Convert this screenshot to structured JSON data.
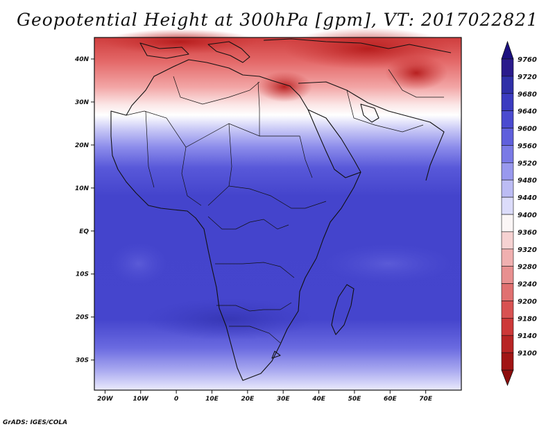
{
  "title": "Geopotential Height at 300hPa [gpm], VT: 2017022821",
  "credit": "GrADS: IGES/COLA",
  "map": {
    "lon_range": [
      -23,
      80
    ],
    "lat_range": [
      -37,
      45
    ],
    "lat_ticks": [
      {
        "value": 40,
        "label": "40N"
      },
      {
        "value": 30,
        "label": "30N"
      },
      {
        "value": 20,
        "label": "20N"
      },
      {
        "value": 10,
        "label": "10N"
      },
      {
        "value": 0,
        "label": "EQ"
      },
      {
        "value": -10,
        "label": "10S"
      },
      {
        "value": -20,
        "label": "20S"
      },
      {
        "value": -30,
        "label": "30S"
      }
    ],
    "lon_ticks": [
      {
        "value": -20,
        "label": "20W"
      },
      {
        "value": -10,
        "label": "10W"
      },
      {
        "value": 0,
        "label": "0"
      },
      {
        "value": 10,
        "label": "10E"
      },
      {
        "value": 20,
        "label": "20E"
      },
      {
        "value": 30,
        "label": "30E"
      },
      {
        "value": 40,
        "label": "40E"
      },
      {
        "value": 50,
        "label": "50E"
      },
      {
        "value": 60,
        "label": "60E"
      },
      {
        "value": 70,
        "label": "70E"
      }
    ]
  },
  "colorbar": {
    "levels": [
      {
        "label": "9760",
        "color": "#2a1a8c"
      },
      {
        "label": "9720",
        "color": "#2f2fa8"
      },
      {
        "label": "9680",
        "color": "#3b3bc0"
      },
      {
        "label": "9640",
        "color": "#4a4ad0"
      },
      {
        "label": "9600",
        "color": "#5f5fdc"
      },
      {
        "label": "9560",
        "color": "#7a7ae6"
      },
      {
        "label": "9520",
        "color": "#9999ee"
      },
      {
        "label": "9480",
        "color": "#bcbcf4"
      },
      {
        "label": "9440",
        "color": "#dcdcfa"
      },
      {
        "label": "9400",
        "color": "#fbf6f6"
      },
      {
        "label": "9360",
        "color": "#f6d2d2"
      },
      {
        "label": "9320",
        "color": "#f0b0b0"
      },
      {
        "label": "9280",
        "color": "#e89090"
      },
      {
        "label": "9240",
        "color": "#e07070"
      },
      {
        "label": "9200",
        "color": "#d85252"
      },
      {
        "label": "9180",
        "color": "#cd3838"
      },
      {
        "label": "9140",
        "color": "#b82424"
      },
      {
        "label": "9100",
        "color": "#a11414"
      }
    ],
    "top_arrow_color": "#1c1080",
    "bottom_arrow_color": "#8e0d0d"
  }
}
